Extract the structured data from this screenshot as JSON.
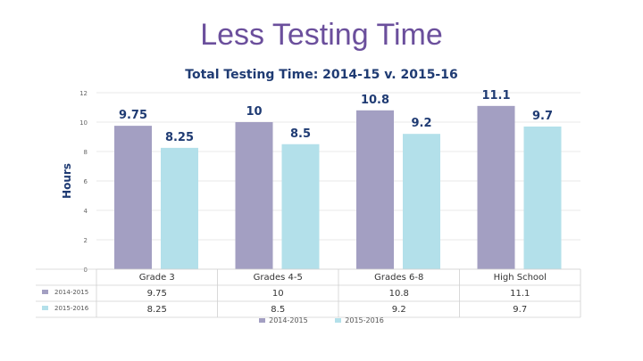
{
  "slide": {
    "title": "Less Testing Time"
  },
  "chart_data": {
    "type": "bar",
    "title": "Total Testing Time: 2014-15 v. 2015-16",
    "ylabel": "Hours",
    "xlabel": "",
    "ylim": [
      0,
      12
    ],
    "yticks": [
      0,
      2,
      4,
      6,
      8,
      10,
      12
    ],
    "categories": [
      "Grade 3",
      "Grades 4-5",
      "Grades 6-8",
      "High School"
    ],
    "series": [
      {
        "name": "2014-2015",
        "color": "#a39fc2",
        "values": [
          9.75,
          10,
          10.8,
          11.1
        ],
        "labels": [
          "9.75",
          "10",
          "10.8",
          "11.1"
        ]
      },
      {
        "name": "2015-2016",
        "color": "#b3e0ea",
        "values": [
          8.25,
          8.5,
          9.2,
          9.7
        ],
        "labels": [
          "8.25",
          "8.5",
          "9.2",
          "9.7"
        ]
      }
    ],
    "legend_position": "bottom",
    "table": {
      "row_labels": [
        "2014-2015",
        "2015-2016"
      ],
      "rows": [
        [
          "9.75",
          "10",
          "10.8",
          "11.1"
        ],
        [
          "8.25",
          "8.5",
          "9.2",
          "9.7"
        ]
      ]
    }
  }
}
